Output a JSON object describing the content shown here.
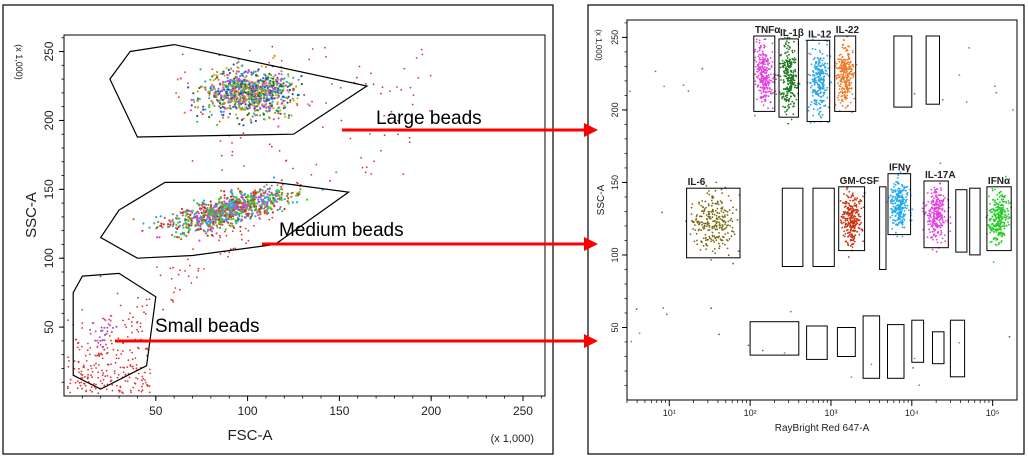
{
  "chart_data": [
    {
      "type": "scatter",
      "title": "",
      "xlabel": "FSC-A",
      "ylabel": "SSC-A",
      "x_multiplier": "(x 1,000)",
      "y_multiplier": "(x 1,000)",
      "xlim": [
        0,
        262
      ],
      "ylim": [
        0,
        262
      ],
      "x_ticks": [
        "50",
        "100",
        "150",
        "200",
        "250"
      ],
      "x_tick_values": [
        50,
        100,
        150,
        200,
        250
      ],
      "y_ticks": [
        "50",
        "100",
        "150",
        "200",
        "250"
      ],
      "y_tick_values": [
        50,
        100,
        150,
        200,
        250
      ],
      "grid": false,
      "gates": [
        {
          "label": "Large beads",
          "polygon": [
            [
              36,
              250
            ],
            [
              60,
              255
            ],
            [
              165,
              225
            ],
            [
              125,
              190
            ],
            [
              40,
              188
            ],
            [
              25,
              230
            ]
          ]
        },
        {
          "label": "Medium beads",
          "polygon": [
            [
              30,
              135
            ],
            [
              55,
              155
            ],
            [
              115,
              155
            ],
            [
              155,
              148
            ],
            [
              115,
              110
            ],
            [
              70,
              102
            ],
            [
              40,
              100
            ],
            [
              20,
              115
            ]
          ]
        },
        {
          "label": "Small beads",
          "polygon": [
            [
              10,
              87
            ],
            [
              30,
              89
            ],
            [
              50,
              72
            ],
            [
              45,
              22
            ],
            [
              20,
              5
            ],
            [
              5,
              15
            ],
            [
              5,
              75
            ]
          ]
        }
      ],
      "clusters": [
        {
          "label": "Large beads",
          "center": [
            100,
            220
          ],
          "spread": [
            22,
            15
          ],
          "colors": [
            "#2aa4e6",
            "#e43fe0",
            "#1f7a1f",
            "#f07820",
            "#6ab52b",
            "#bbbb22",
            "#2255cc"
          ]
        },
        {
          "label": "Medium beads",
          "center": [
            90,
            135
          ],
          "spread": [
            28,
            10
          ],
          "colors": [
            "#22e022",
            "#2aa4e6",
            "#9b7f2a",
            "#e43fe0",
            "#cc3311"
          ]
        },
        {
          "label": "Small beads",
          "center": [
            22,
            45
          ],
          "spread": [
            8,
            12
          ],
          "colors": [
            "#cc66cc",
            "#9966cc"
          ]
        }
      ],
      "annotations": [
        "Large beads",
        "Medium beads",
        "Small beads"
      ]
    },
    {
      "type": "scatter",
      "title": "",
      "xlabel": "RayBright Red 647-A",
      "ylabel": "SSC-A",
      "y_multiplier": "(x 1,000)",
      "x_scale": "log",
      "xlim": [
        3,
        200000
      ],
      "ylim": [
        0,
        262
      ],
      "x_ticks": [
        "10¹",
        "10²",
        "10³",
        "10⁴",
        "10⁵"
      ],
      "x_tick_values": [
        10,
        100,
        1000,
        10000,
        100000
      ],
      "y_ticks": [
        "50",
        "100",
        "150",
        "200",
        "250"
      ],
      "y_tick_values": [
        50,
        100,
        150,
        200,
        250
      ],
      "grid": false,
      "populations": [
        {
          "name": "TNFα",
          "x": 150,
          "y": 225,
          "color": "#e43fe0"
        },
        {
          "name": "IL-1β",
          "x": 300,
          "y": 222,
          "color": "#1f7a1f"
        },
        {
          "name": "IL-12",
          "x": 700,
          "y": 220,
          "color": "#2aa4e6"
        },
        {
          "name": "IL-22",
          "x": 1500,
          "y": 225,
          "color": "#f07820"
        },
        {
          "name": "IL-6",
          "x": 35,
          "y": 122,
          "color": "#7a6a12"
        },
        {
          "name": "GM-CSF",
          "x": 1800,
          "y": 125,
          "color": "#cc3311"
        },
        {
          "name": "IFNγ",
          "x": 7000,
          "y": 135,
          "color": "#22aaee"
        },
        {
          "name": "IL-17A",
          "x": 20000,
          "y": 128,
          "color": "#e43fe0"
        },
        {
          "name": "IFNα",
          "x": 120000,
          "y": 125,
          "color": "#22cc22"
        }
      ],
      "empty_gates": [
        {
          "x": [
            6000,
            10000
          ],
          "y": [
            202,
            251
          ]
        },
        {
          "x": [
            15000,
            22000
          ],
          "y": [
            204,
            251
          ]
        },
        {
          "x": [
            250,
            450
          ],
          "y": [
            92,
            146
          ]
        },
        {
          "x": [
            600,
            1100
          ],
          "y": [
            92,
            146
          ]
        },
        {
          "x": [
            4000,
            4800
          ],
          "y": [
            90,
            147
          ]
        },
        {
          "x": [
            35000,
            48000
          ],
          "y": [
            102,
            145
          ]
        },
        {
          "x": [
            52000,
            70000
          ],
          "y": [
            100,
            146
          ]
        },
        {
          "x": [
            100,
            400
          ],
          "y": [
            31,
            54
          ]
        },
        {
          "x": [
            500,
            900
          ],
          "y": [
            28,
            51
          ]
        },
        {
          "x": [
            1200,
            2000
          ],
          "y": [
            30,
            50
          ]
        },
        {
          "x": [
            2500,
            4000
          ],
          "y": [
            15,
            58
          ]
        },
        {
          "x": [
            5000,
            8000
          ],
          "y": [
            15,
            52
          ]
        },
        {
          "x": [
            10000,
            14000
          ],
          "y": [
            26,
            55
          ]
        },
        {
          "x": [
            18000,
            25000
          ],
          "y": [
            25,
            47
          ]
        },
        {
          "x": [
            30000,
            45000
          ],
          "y": [
            16,
            55
          ]
        }
      ]
    }
  ],
  "colors": {
    "arrow": "#ff0000",
    "gate_stroke": "#000000",
    "background_dots": "#dd3333"
  }
}
